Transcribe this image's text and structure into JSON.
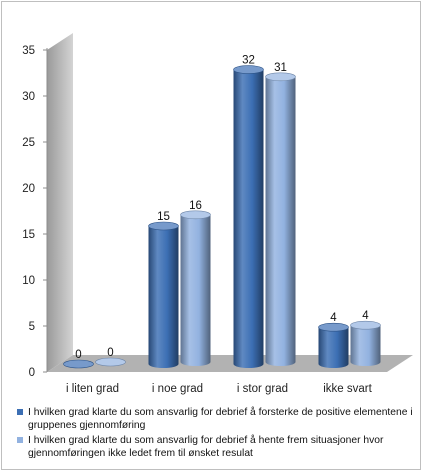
{
  "chart_data": {
    "type": "bar",
    "categories": [
      "i liten grad",
      "i noe grad",
      "i stor grad",
      "ikke svart"
    ],
    "series": [
      {
        "name": "I hvilken grad klarte du som ansvarlig for debrief å forsterke de positive elementene i gruppenes gjennomføring",
        "values": [
          0,
          15,
          32,
          4
        ],
        "color": "#3c6fb4"
      },
      {
        "name": "I hvilken grad klarte du som ansvarlig for debrief å hente frem situasjoner hvor gjennomføringen ikke ledet frem til ønsket resulat",
        "values": [
          0,
          16,
          31,
          4
        ],
        "color": "#92b2e0"
      }
    ],
    "ylim": [
      0,
      35
    ],
    "yticks": [
      0,
      5,
      10,
      15,
      20,
      25,
      30,
      35
    ],
    "grid": false,
    "legend_position": "bottom",
    "title": "",
    "xlabel": "",
    "ylabel": ""
  }
}
